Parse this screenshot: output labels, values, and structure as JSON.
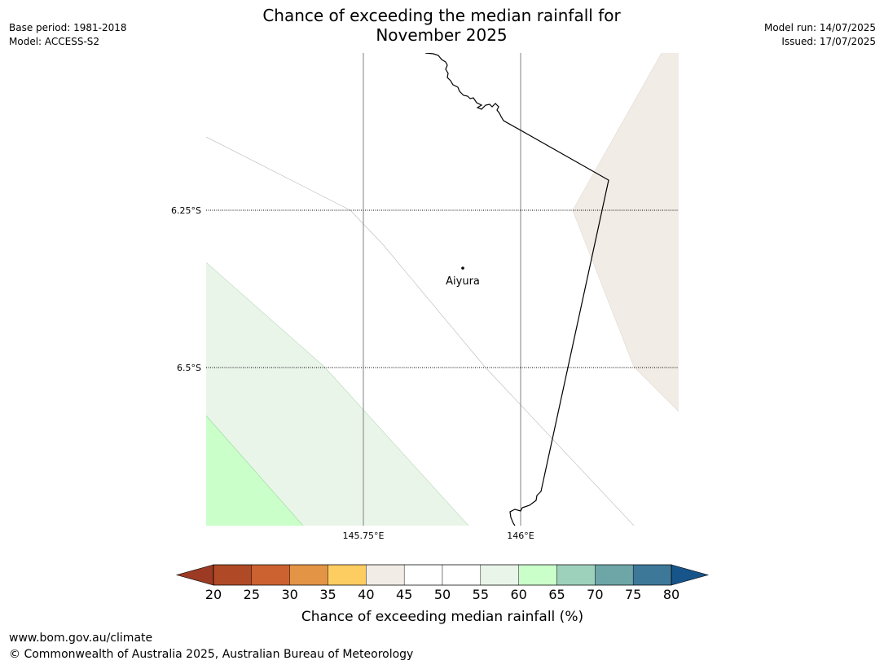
{
  "title_line1": "Chance of exceeding the median rainfall for",
  "title_line2": "November 2025",
  "meta_left": {
    "base_period": "Base period: 1981-2018",
    "model": "Model: ACCESS-S2"
  },
  "meta_right": {
    "model_run": "Model run: 14/07/2025",
    "issued": "Issued: 17/07/2025"
  },
  "map": {
    "lat_labels": [
      "6.25°S",
      "6.5°S"
    ],
    "lon_labels": [
      "145.75°E",
      "146°E"
    ],
    "place": "Aiyura"
  },
  "legend": {
    "ticks": [
      "20",
      "25",
      "30",
      "35",
      "40",
      "45",
      "50",
      "55",
      "60",
      "65",
      "70",
      "75",
      "80"
    ],
    "colors": [
      "#b04a26",
      "#cc622f",
      "#e39444",
      "#fdcd62",
      "#f1ece6",
      "#ffffff",
      "#ffffff",
      "#eaf5ea",
      "#caffca",
      "#9ed1bb",
      "#6ea6a8",
      "#3e7899"
    ],
    "low_extend_color": "#9c3a23",
    "high_extend_color": "#17548a",
    "label": "Chance of exceeding median rainfall (%)"
  },
  "footer": {
    "line1": "www.bom.gov.au/climate",
    "line2": "© Commonwealth of Australia 2025, Australian Bureau of Meteorology"
  }
}
